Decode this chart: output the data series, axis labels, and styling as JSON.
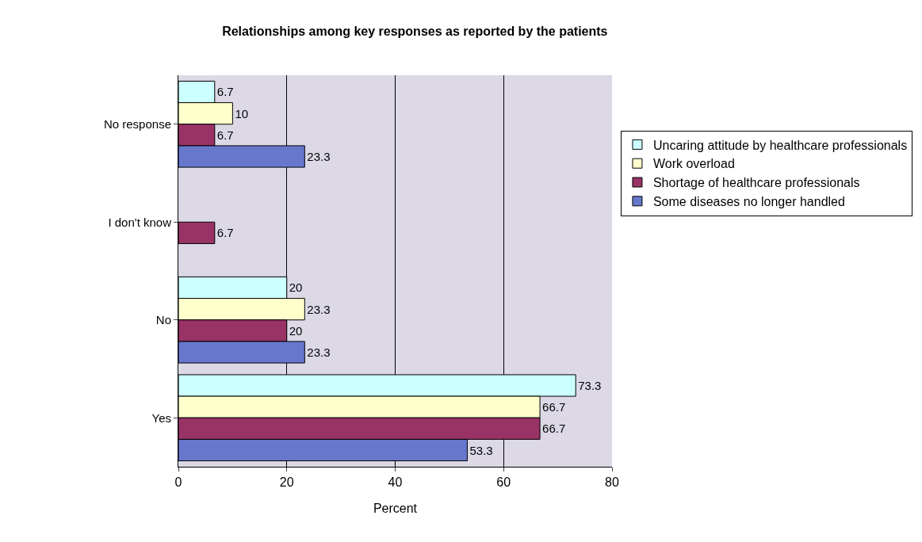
{
  "chart_data": {
    "type": "bar",
    "orientation": "horizontal",
    "title": "Relationships among key responses as reported by the patients",
    "xlabel": "Percent",
    "categories": [
      "No response",
      "I don't know",
      "No",
      "Yes"
    ],
    "series": [
      {
        "name": "Uncaring attitude by healthcare professionals",
        "color": "#ccffff",
        "values": [
          6.7,
          null,
          20,
          73.3
        ]
      },
      {
        "name": "Work overload",
        "color": "#ffffcc",
        "values": [
          10,
          null,
          23.3,
          66.7
        ]
      },
      {
        "name": "Shortage of healthcare professionals",
        "color": "#993366",
        "values": [
          6.7,
          6.7,
          20,
          66.7
        ]
      },
      {
        "name": "Some diseases no longer handled",
        "color": "#6677cc",
        "values": [
          23.3,
          null,
          23.3,
          53.3
        ]
      }
    ],
    "xlim": [
      0,
      80
    ],
    "xticks": [
      0,
      20,
      40,
      60,
      80
    ],
    "grid": "x",
    "legend": "right",
    "data_labels": true
  }
}
